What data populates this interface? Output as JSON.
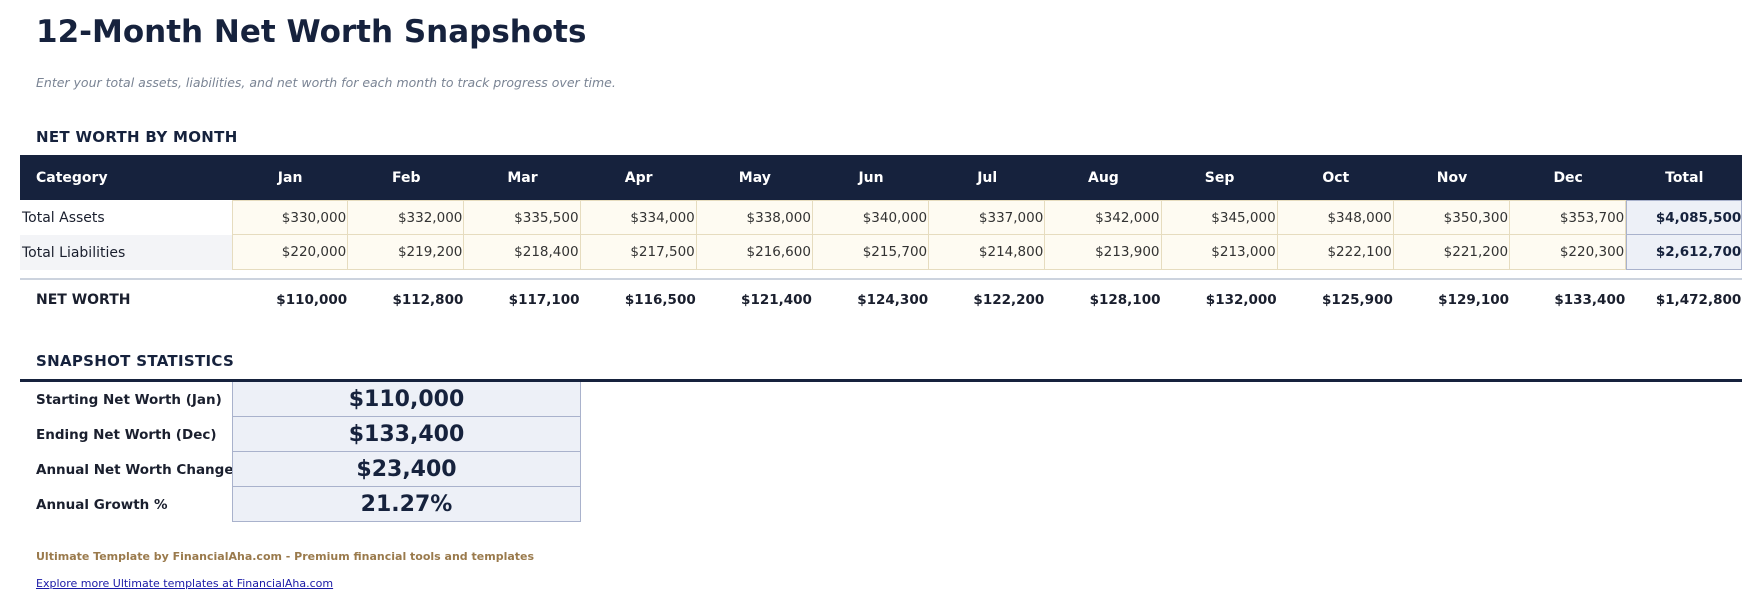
{
  "title": "12-Month Net Worth Snapshots",
  "subtitle": "Enter your total assets, liabilities, and net worth for each month to track progress over time.",
  "section_monthly": "NET WORTH BY MONTH",
  "table": {
    "headers": [
      "Category",
      "Jan",
      "Feb",
      "Mar",
      "Apr",
      "May",
      "Jun",
      "Jul",
      "Aug",
      "Sep",
      "Oct",
      "Nov",
      "Dec",
      "Total"
    ],
    "rows": [
      {
        "label": "Total Assets",
        "values": [
          "$330,000",
          "$332,000",
          "$335,500",
          "$334,000",
          "$338,000",
          "$340,000",
          "$337,000",
          "$342,000",
          "$345,000",
          "$348,000",
          "$350,300",
          "$353,700"
        ],
        "total": "$4,085,500"
      },
      {
        "label": "Total Liabilities",
        "values": [
          "$220,000",
          "$219,200",
          "$218,400",
          "$217,500",
          "$216,600",
          "$215,700",
          "$214,800",
          "$213,900",
          "$213,000",
          "$222,100",
          "$221,200",
          "$220,300"
        ],
        "total": "$2,612,700"
      }
    ],
    "net_worth": {
      "label": "NET WORTH",
      "values": [
        "$110,000",
        "$112,800",
        "$117,100",
        "$116,500",
        "$121,400",
        "$124,300",
        "$122,200",
        "$128,100",
        "$132,000",
        "$125,900",
        "$129,100",
        "$133,400"
      ],
      "total": "$1,472,800"
    }
  },
  "section_stats": "SNAPSHOT STATISTICS",
  "stats": [
    {
      "label": "Starting Net Worth (Jan)",
      "value": "$110,000"
    },
    {
      "label": "Ending Net Worth (Dec)",
      "value": "$133,400"
    },
    {
      "label": "Annual Net Worth Change",
      "value": "$23,400"
    },
    {
      "label": "Annual Growth %",
      "value": "21.27%"
    }
  ],
  "footer": "Ultimate Template by FinancialAha.com - Premium financial tools and templates",
  "link": "Explore more Ultimate templates at FinancialAha.com",
  "colors": {
    "header_bg": "#16223d",
    "input_bg": "#fefbf2",
    "total_bg": "#edf0f7",
    "footer": "#9a7a4c"
  }
}
